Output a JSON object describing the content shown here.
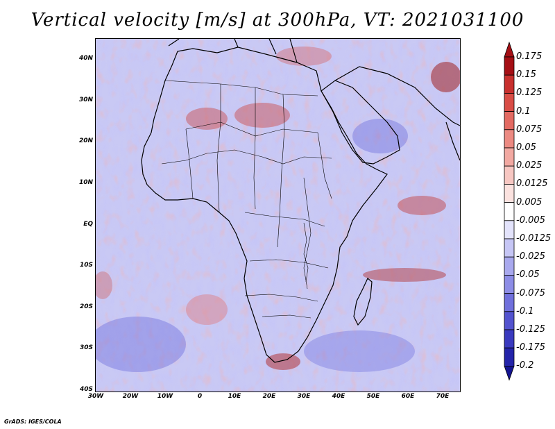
{
  "title": "Vertical velocity [m/s] at 300hPa, VT: 2021031100",
  "credit": "GrADS: IGES/COLA",
  "map": {
    "lat_ticks": [
      "40N",
      "30N",
      "20N",
      "10N",
      "EQ",
      "10S",
      "20S",
      "30S",
      "40S"
    ],
    "lon_ticks": [
      "30W",
      "20W",
      "10W",
      "0",
      "10E",
      "20E",
      "30E",
      "40E",
      "50E",
      "60E",
      "70E"
    ],
    "lon_range": [
      -30,
      75
    ],
    "lat_range": [
      -40,
      45
    ]
  },
  "colorbar": {
    "labels": [
      "0.175",
      "0.15",
      "0.125",
      "0.1",
      "0.075",
      "0.05",
      "0.025",
      "0.0125",
      "0.005",
      "-0.005",
      "-0.0125",
      "-0.025",
      "-0.05",
      "-0.075",
      "-0.1",
      "-0.125",
      "-0.175",
      "-0.2"
    ],
    "colors": [
      "#a50f15",
      "#c8302e",
      "#d94d46",
      "#e36a62",
      "#ec8a82",
      "#f2a9a2",
      "#f7c7c2",
      "#fbe2df",
      "#ffffff",
      "#e3e3fb",
      "#c6c6f5",
      "#a9a9ee",
      "#8d8de6",
      "#7070dc",
      "#5353cf",
      "#3a3abf",
      "#2424aa",
      "#141492"
    ]
  }
}
